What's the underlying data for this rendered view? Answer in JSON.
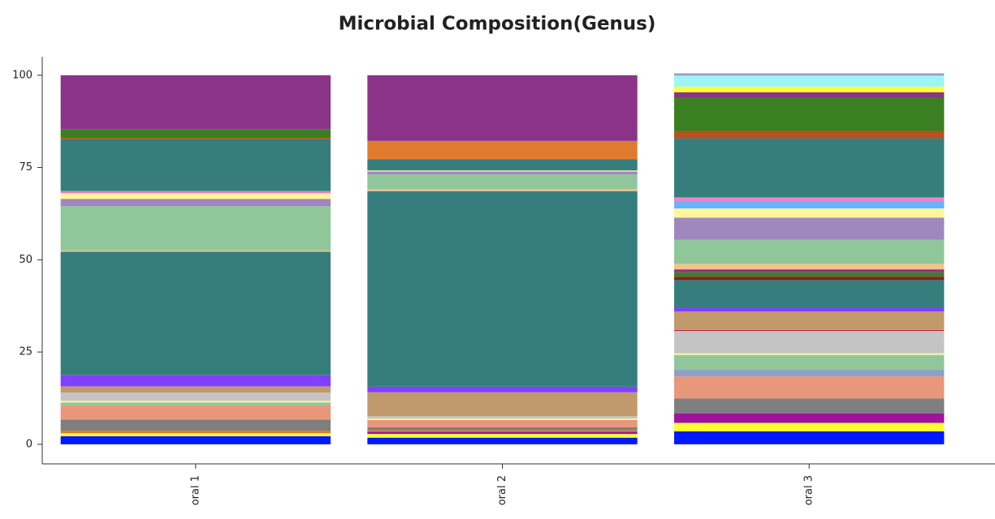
{
  "chart_data": {
    "type": "stacked_bar",
    "title": "Microbial Composition(Genus)",
    "categories": [
      "oral 1",
      "oral 2",
      "oral 3"
    ],
    "ylim": [
      -5.3,
      105
    ],
    "yticks": [
      0,
      25,
      50,
      75,
      100
    ],
    "series": [
      {
        "color": "#0019ff",
        "values": [
          2.2,
          1.8,
          3.5
        ]
      },
      {
        "color": "#ffff33",
        "values": [
          0.8,
          1.0,
          2.3
        ]
      },
      {
        "color": "#a0139e",
        "values": [
          0,
          0.6,
          2.6
        ]
      },
      {
        "color": "#e07b2d",
        "values": [
          0.7,
          0.4,
          0
        ]
      },
      {
        "color": "#7f7f7f",
        "values": [
          3.0,
          0.8,
          4.0
        ]
      },
      {
        "color": "#e8977a",
        "values": [
          3.8,
          2.0,
          6.0
        ]
      },
      {
        "color": "#8fa0c8",
        "values": [
          0,
          0,
          1.8
        ]
      },
      {
        "color": "#8fc79b",
        "values": [
          0.8,
          0,
          4.0
        ]
      },
      {
        "color": "#f5f0a0",
        "values": [
          0.5,
          0.4,
          0.5
        ]
      },
      {
        "color": "#c4c4c4",
        "values": [
          2.2,
          0.6,
          6.0
        ]
      },
      {
        "color": "#c8204a",
        "values": [
          0,
          0,
          0.3
        ]
      },
      {
        "color": "#c19a6b",
        "values": [
          1.7,
          6.5,
          5.0
        ]
      },
      {
        "color": "#8040ff",
        "values": [
          3.0,
          1.5,
          1.0
        ]
      },
      {
        "color": "#367e7e",
        "values": [
          33.5,
          53,
          7.5
        ]
      },
      {
        "color": "#8b1a1a",
        "values": [
          0,
          0,
          0.9
        ]
      },
      {
        "color": "#3a7f22",
        "values": [
          0,
          0,
          1.2
        ]
      },
      {
        "color": "#8b3389",
        "values": [
          0,
          0,
          0.8
        ]
      },
      {
        "color": "#f4c28c",
        "values": [
          0.3,
          0.5,
          1.5
        ]
      },
      {
        "color": "#8fc79b",
        "values": [
          12,
          4,
          6.5
        ]
      },
      {
        "color": "#9e88bd",
        "values": [
          2,
          0.8,
          6.0
        ]
      },
      {
        "color": "#fff59a",
        "values": [
          1.5,
          0.3,
          2.5
        ]
      },
      {
        "color": "#66b3ff",
        "values": [
          0,
          0,
          2.0
        ]
      },
      {
        "color": "#f081c8",
        "values": [
          0.6,
          0,
          1
        ]
      },
      {
        "color": "#367e7e",
        "values": [
          14,
          3,
          16
        ]
      },
      {
        "color": "#b5521d",
        "values": [
          0.4,
          0,
          2
        ]
      },
      {
        "color": "#e07b2d",
        "values": [
          0,
          5,
          0
        ]
      },
      {
        "color": "#3a7f22",
        "values": [
          2.4,
          0,
          9
        ]
      },
      {
        "color": "#8b3389",
        "values": [
          14.6,
          17.8,
          1.5
        ]
      },
      {
        "color": "#ffff33",
        "values": [
          0,
          0,
          1.5
        ]
      },
      {
        "color": "#9ff5f5",
        "values": [
          0,
          0,
          3.0
        ]
      },
      {
        "color": "#8fa0c8",
        "values": [
          0,
          0,
          0.6
        ]
      }
    ]
  }
}
